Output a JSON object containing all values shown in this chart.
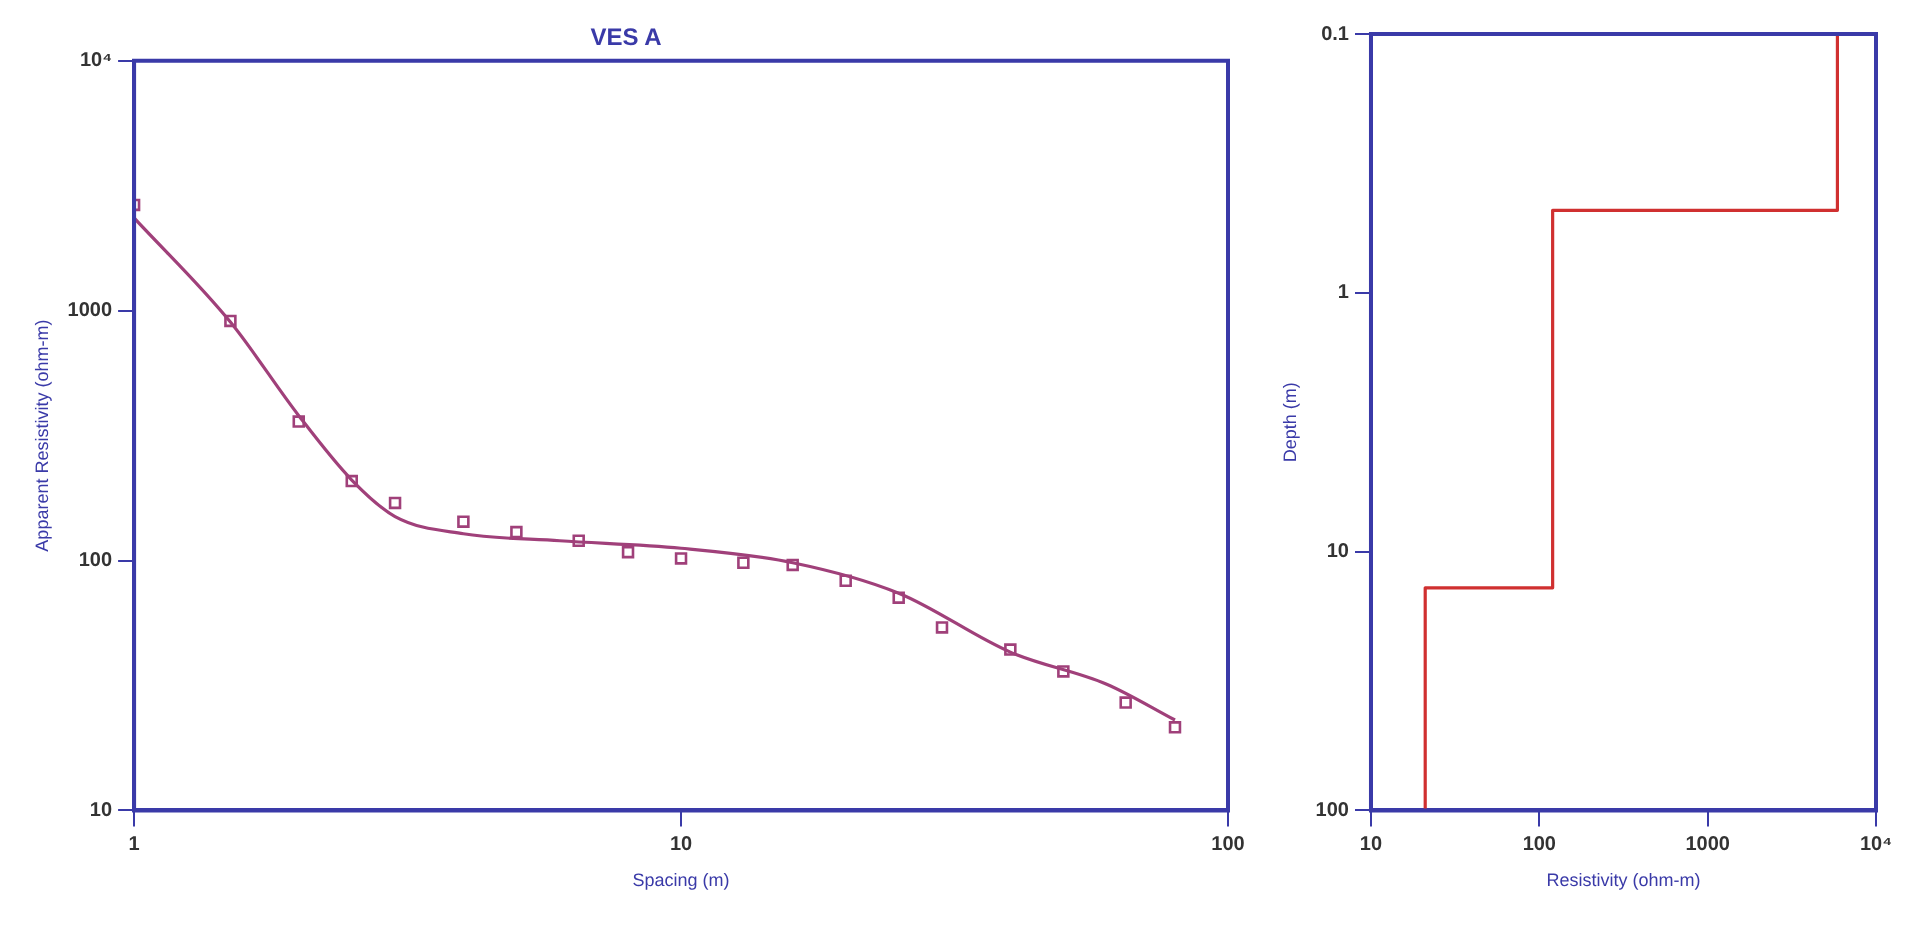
{
  "chart_data": [
    {
      "type": "scatter",
      "title": "VES A",
      "xlabel": "Spacing (m)",
      "ylabel": "Apparent Resistivity (ohm-m)",
      "log": "xy",
      "xlim": [
        1,
        100
      ],
      "xticks": [
        1,
        10,
        100
      ],
      "ylim": [
        10,
        10000
      ],
      "yticks": [
        10,
        100,
        1000,
        {
          "value": 10000,
          "label": "10⁴"
        }
      ],
      "grid": false,
      "legend": false,
      "series": [
        {
          "marker": "square",
          "color": "#a0407a",
          "x": [
            1,
            1.5,
            2,
            2.5,
            3,
            4,
            5,
            6.5,
            8,
            10,
            13,
            16,
            20,
            25,
            30,
            40,
            50,
            65,
            80
          ],
          "values": [
            2650,
            910,
            360,
            208,
            170,
            143,
            130,
            120,
            108,
            102,
            98,
            96,
            83,
            71,
            54,
            44,
            36,
            27,
            21.5
          ]
        },
        {
          "type": "line",
          "marker": "none",
          "color": "#a0407a",
          "x": [
            1,
            1.5,
            2,
            2.5,
            3,
            4,
            6,
            10,
            16,
            25,
            40,
            60,
            80
          ],
          "values": [
            2350,
            900,
            380,
            210,
            150,
            128,
            120,
            112,
            98,
            74,
            43,
            32,
            23
          ]
        }
      ]
    },
    {
      "type": "line",
      "xlabel": "Resistivity (ohm-m)",
      "ylabel": "Depth (m)",
      "log": "xy",
      "xlim": [
        10,
        10000
      ],
      "xticks": [
        10,
        100,
        1000,
        {
          "value": 10000,
          "label": "10⁴"
        }
      ],
      "ylim": [
        100,
        0.1
      ],
      "yticks": [
        0.1,
        1,
        10,
        100
      ],
      "grid": false,
      "legend": false,
      "series": [
        {
          "marker": "none",
          "color": "#d03030",
          "x": [
            5900,
            5900,
            120,
            120,
            21,
            21
          ],
          "values": [
            0.1,
            0.48,
            0.48,
            13.8,
            13.8,
            100
          ]
        }
      ]
    }
  ]
}
